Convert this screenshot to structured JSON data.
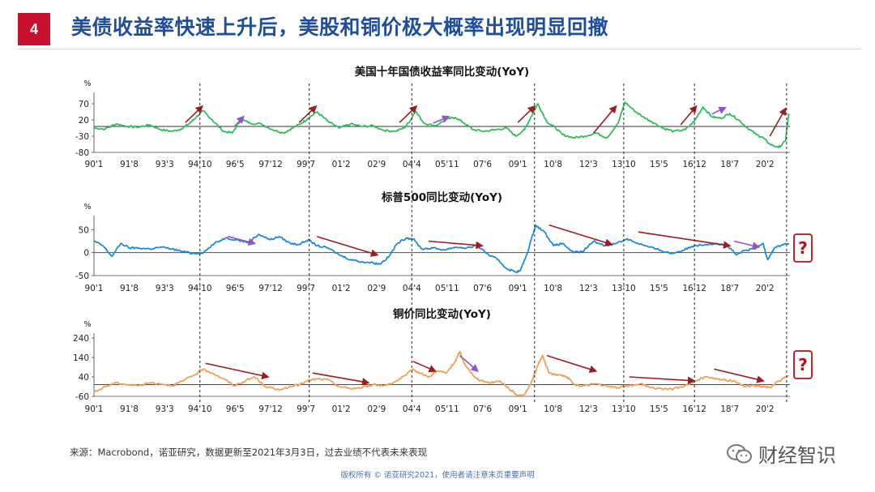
{
  "header": {
    "page_number": "4",
    "title": "美债收益率快速上升后，美股和铜价极大概率出现明显回撤"
  },
  "footer": {
    "source": "来源：Macrobond，诺亚研究，数据更新至2021年3月3日，过去业绩不代表未来表现",
    "copyright": "版权所有 © 诺亚研究2021，使用者请注意末页重要声明",
    "brand": "财经智识"
  },
  "colors": {
    "accent_red": "#c8102e",
    "title_blue": "#1f4e9c",
    "yield_green": "#2ebd5a",
    "sp500_blue": "#1f8ad6",
    "copper_orange": "#f0a055",
    "arrow_red": "#9e1c22",
    "arrow_purple": "#8e57c9"
  },
  "icons": [
    "question-mark-icon",
    "wechat-brand-icon"
  ],
  "chart_data": [
    {
      "type": "line",
      "title": "美国十年国债收益率同比变动(YoY)",
      "unit_label": "%",
      "ylim": [
        -80,
        90
      ],
      "yticks": [
        70,
        20,
        -30,
        -80
      ],
      "xlim": [
        1990.0,
        2021.2
      ],
      "xticks": [
        {
          "label": "90'1",
          "x": 1990.0
        },
        {
          "label": "91'8",
          "x": 1991.58
        },
        {
          "label": "93'3",
          "x": 1993.17
        },
        {
          "label": "94'10",
          "x": 1994.75
        },
        {
          "label": "96'5",
          "x": 1996.33
        },
        {
          "label": "97'12",
          "x": 1997.92
        },
        {
          "label": "99'7",
          "x": 1999.5
        },
        {
          "label": "01'2",
          "x": 2001.08
        },
        {
          "label": "02'9",
          "x": 2002.67
        },
        {
          "label": "04'4",
          "x": 2004.25
        },
        {
          "label": "05'11",
          "x": 2005.83
        },
        {
          "label": "07'6",
          "x": 2007.42
        },
        {
          "label": "09'1",
          "x": 2009.0
        },
        {
          "label": "10'8",
          "x": 2010.58
        },
        {
          "label": "12'3",
          "x": 2012.17
        },
        {
          "label": "13'10",
          "x": 2013.75
        },
        {
          "label": "15'5",
          "x": 2015.33
        },
        {
          "label": "16'12",
          "x": 2016.92
        },
        {
          "label": "18'7",
          "x": 2018.5
        },
        {
          "label": "20'2",
          "x": 2020.08
        }
      ],
      "series": [
        {
          "x": [
            1990.0,
            1990.5,
            1991.0,
            1991.5,
            1992.0,
            1992.5,
            1993.0,
            1993.5,
            1993.9,
            1994.3,
            1994.6,
            1994.9,
            1995.3,
            1995.8,
            1996.2,
            1996.6,
            1997.0,
            1997.5,
            1998.0,
            1998.5,
            1998.9,
            1999.3,
            1999.6,
            2000.0,
            2000.5,
            2001.0,
            2001.5,
            2002.0,
            2002.5,
            2003.0,
            2003.5,
            2003.9,
            2004.2,
            2004.4,
            2004.8,
            2005.3,
            2005.8,
            2006.2,
            2006.6,
            2007.0,
            2007.5,
            2008.0,
            2008.5,
            2008.9,
            2009.3,
            2009.6,
            2009.9,
            2010.3,
            2010.7,
            2011.0,
            2011.5,
            2012.0,
            2012.5,
            2013.0,
            2013.5,
            2013.8,
            2014.2,
            2014.6,
            2015.0,
            2015.5,
            2016.0,
            2016.5,
            2016.9,
            2017.3,
            2017.7,
            2018.1,
            2018.5,
            2018.9,
            2019.3,
            2019.7,
            2020.0,
            2020.3,
            2020.7,
            2021.0,
            2021.15
          ],
          "y": [
            -5,
            -8,
            8,
            0,
            -2,
            5,
            -10,
            -15,
            -8,
            10,
            30,
            48,
            20,
            -15,
            -20,
            22,
            10,
            8,
            -10,
            -20,
            -5,
            10,
            25,
            45,
            15,
            -5,
            8,
            0,
            2,
            -12,
            -15,
            -5,
            20,
            48,
            10,
            2,
            22,
            28,
            10,
            -10,
            -15,
            -10,
            -5,
            -30,
            -10,
            30,
            70,
            15,
            -5,
            -25,
            -35,
            -30,
            -20,
            -35,
            10,
            75,
            50,
            30,
            15,
            -5,
            -15,
            -10,
            15,
            60,
            30,
            25,
            40,
            20,
            -5,
            -25,
            -35,
            -55,
            -65,
            -45,
            40
          ]
        }
      ],
      "annotations": [
        {
          "type": "arrow",
          "color": "red",
          "from": [
            1994.1,
            12
          ],
          "to": [
            1994.85,
            62
          ]
        },
        {
          "type": "arrow",
          "color": "purple",
          "from": [
            1996.3,
            0
          ],
          "to": [
            1996.7,
            30
          ]
        },
        {
          "type": "arrow",
          "color": "red",
          "from": [
            1999.2,
            12
          ],
          "to": [
            1999.95,
            62
          ]
        },
        {
          "type": "arrow",
          "color": "red",
          "from": [
            2003.7,
            12
          ],
          "to": [
            2004.45,
            62
          ]
        },
        {
          "type": "arrow",
          "color": "purple",
          "from": [
            2005.2,
            10
          ],
          "to": [
            2005.9,
            30
          ]
        },
        {
          "type": "arrow",
          "color": "red",
          "from": [
            2009.0,
            12
          ],
          "to": [
            2009.75,
            62
          ]
        },
        {
          "type": "arrow",
          "color": "red",
          "from": [
            2012.4,
            -20
          ],
          "to": [
            2013.4,
            62
          ]
        },
        {
          "type": "arrow",
          "color": "red",
          "from": [
            2016.3,
            5
          ],
          "to": [
            2017.0,
            62
          ]
        },
        {
          "type": "arrow",
          "color": "purple",
          "from": [
            2017.7,
            38
          ],
          "to": [
            2018.3,
            58
          ]
        },
        {
          "type": "arrow",
          "color": "red",
          "from": [
            2020.3,
            -30
          ],
          "to": [
            2021.0,
            55
          ]
        }
      ]
    },
    {
      "type": "line",
      "title": "标普500同比变动(YoY)",
      "unit_label": "%",
      "ylim": [
        -50,
        70
      ],
      "yticks": [
        50,
        0,
        -50
      ],
      "xlim": [
        1990.0,
        2021.2
      ],
      "xticks": [
        {
          "label": "90'1",
          "x": 1990.0
        },
        {
          "label": "91'8",
          "x": 1991.58
        },
        {
          "label": "93'3",
          "x": 1993.17
        },
        {
          "label": "94'10",
          "x": 1994.75
        },
        {
          "label": "96'5",
          "x": 1996.33
        },
        {
          "label": "97'12",
          "x": 1997.92
        },
        {
          "label": "99'7",
          "x": 1999.5
        },
        {
          "label": "01'2",
          "x": 2001.08
        },
        {
          "label": "02'9",
          "x": 2002.67
        },
        {
          "label": "04'4",
          "x": 2004.25
        },
        {
          "label": "05'11",
          "x": 2005.83
        },
        {
          "label": "07'6",
          "x": 2007.42
        },
        {
          "label": "09'1",
          "x": 2009.0
        },
        {
          "label": "10'8",
          "x": 2010.58
        },
        {
          "label": "12'3",
          "x": 2012.17
        },
        {
          "label": "13'10",
          "x": 2013.75
        },
        {
          "label": "15'5",
          "x": 2015.33
        },
        {
          "label": "16'12",
          "x": 2016.92
        },
        {
          "label": "18'7",
          "x": 2018.5
        },
        {
          "label": "20'2",
          "x": 2020.08
        }
      ],
      "series": [
        {
          "x": [
            1990.0,
            1990.4,
            1990.8,
            1991.2,
            1991.6,
            1992.0,
            1992.5,
            1993.0,
            1993.5,
            1994.0,
            1994.5,
            1994.9,
            1995.4,
            1995.9,
            1996.4,
            1996.9,
            1997.4,
            1997.9,
            1998.3,
            1998.8,
            1999.2,
            1999.6,
            2000.0,
            2000.5,
            2001.0,
            2001.5,
            2002.0,
            2002.5,
            2002.8,
            2003.2,
            2003.6,
            2004.0,
            2004.3,
            2004.7,
            2005.2,
            2005.7,
            2006.2,
            2006.7,
            2007.2,
            2007.7,
            2008.1,
            2008.5,
            2008.9,
            2009.1,
            2009.4,
            2009.8,
            2010.2,
            2010.6,
            2011.0,
            2011.5,
            2011.9,
            2012.4,
            2012.9,
            2013.4,
            2013.9,
            2014.4,
            2014.9,
            2015.4,
            2015.9,
            2016.4,
            2016.9,
            2017.4,
            2017.9,
            2018.4,
            2018.8,
            2019.2,
            2019.6,
            2020.0,
            2020.2,
            2020.5,
            2020.9,
            2021.15
          ],
          "y": [
            25,
            15,
            -8,
            20,
            10,
            10,
            8,
            12,
            8,
            2,
            -2,
            0,
            20,
            32,
            28,
            22,
            40,
            28,
            35,
            20,
            18,
            28,
            15,
            10,
            -5,
            -15,
            -20,
            -22,
            -25,
            -10,
            20,
            32,
            30,
            8,
            10,
            6,
            12,
            10,
            15,
            -5,
            -15,
            -35,
            -42,
            -40,
            -5,
            60,
            45,
            15,
            20,
            0,
            2,
            25,
            15,
            20,
            30,
            20,
            12,
            5,
            -2,
            5,
            15,
            18,
            20,
            15,
            -5,
            5,
            8,
            20,
            -15,
            10,
            18,
            20
          ]
        }
      ],
      "annotations": [
        {
          "type": "arrow",
          "color": "purple",
          "from": [
            1996.0,
            35
          ],
          "to": [
            1997.2,
            20
          ]
        },
        {
          "type": "arrow",
          "color": "red",
          "from": [
            2000.0,
            35
          ],
          "to": [
            2002.7,
            -5
          ]
        },
        {
          "type": "arrow",
          "color": "red",
          "from": [
            2005.0,
            25
          ],
          "to": [
            2007.4,
            15
          ]
        },
        {
          "type": "arrow",
          "color": "red",
          "from": [
            2010.4,
            60
          ],
          "to": [
            2013.2,
            18
          ]
        },
        {
          "type": "arrow",
          "color": "red",
          "from": [
            2014.4,
            45
          ],
          "to": [
            2018.5,
            15
          ]
        },
        {
          "type": "arrow",
          "color": "purple",
          "from": [
            2018.7,
            25
          ],
          "to": [
            2019.8,
            12
          ]
        }
      ],
      "callout": "?"
    },
    {
      "type": "line",
      "title": "铜价同比变动(YoY)",
      "unit_label": "%",
      "ylim": [
        -60,
        240
      ],
      "yticks": [
        240,
        140,
        40,
        -60
      ],
      "xlim": [
        1990.0,
        2021.2
      ],
      "xticks": [
        {
          "label": "90'1",
          "x": 1990.0
        },
        {
          "label": "91'8",
          "x": 1991.58
        },
        {
          "label": "93'3",
          "x": 1993.17
        },
        {
          "label": "94'10",
          "x": 1994.75
        },
        {
          "label": "96'5",
          "x": 1996.33
        },
        {
          "label": "97'12",
          "x": 1997.92
        },
        {
          "label": "99'7",
          "x": 1999.5
        },
        {
          "label": "01'2",
          "x": 2001.08
        },
        {
          "label": "02'9",
          "x": 2002.67
        },
        {
          "label": "04'4",
          "x": 2004.25
        },
        {
          "label": "05'11",
          "x": 2005.83
        },
        {
          "label": "07'6",
          "x": 2007.42
        },
        {
          "label": "09'1",
          "x": 2009.0
        },
        {
          "label": "10'8",
          "x": 2010.58
        },
        {
          "label": "12'3",
          "x": 2012.17
        },
        {
          "label": "13'10",
          "x": 2013.75
        },
        {
          "label": "15'5",
          "x": 2015.33
        },
        {
          "label": "16'12",
          "x": 2016.92
        },
        {
          "label": "18'7",
          "x": 2018.5
        },
        {
          "label": "20'2",
          "x": 2020.08
        }
      ],
      "series": [
        {
          "x": [
            1990.0,
            1990.5,
            1991.0,
            1991.5,
            1992.0,
            1992.5,
            1993.0,
            1993.5,
            1994.0,
            1994.5,
            1994.9,
            1995.3,
            1995.8,
            1996.3,
            1996.8,
            1997.2,
            1997.7,
            1998.2,
            1998.7,
            1999.2,
            1999.6,
            2000.0,
            2000.5,
            2001.0,
            2001.5,
            2002.0,
            2002.5,
            2003.0,
            2003.5,
            2004.0,
            2004.3,
            2004.6,
            2005.0,
            2005.4,
            2005.8,
            2006.2,
            2006.4,
            2006.6,
            2006.9,
            2007.3,
            2007.8,
            2008.2,
            2008.6,
            2009.0,
            2009.3,
            2009.6,
            2009.9,
            2010.1,
            2010.4,
            2010.8,
            2011.2,
            2011.6,
            2012.0,
            2012.5,
            2013.0,
            2013.5,
            2014.0,
            2014.5,
            2015.0,
            2015.5,
            2016.0,
            2016.5,
            2017.0,
            2017.4,
            2017.8,
            2018.2,
            2018.7,
            2019.2,
            2019.7,
            2020.0,
            2020.3,
            2020.7,
            2021.15
          ],
          "y": [
            -40,
            -10,
            10,
            0,
            -5,
            10,
            5,
            -5,
            20,
            50,
            80,
            60,
            30,
            -5,
            20,
            40,
            -10,
            -25,
            -15,
            0,
            20,
            30,
            25,
            -10,
            -20,
            -15,
            0,
            -5,
            15,
            50,
            80,
            60,
            40,
            70,
            60,
            120,
            170,
            110,
            60,
            20,
            10,
            20,
            -20,
            -55,
            -50,
            10,
            100,
            150,
            60,
            50,
            40,
            -5,
            -5,
            5,
            -10,
            -15,
            -5,
            5,
            -15,
            -25,
            -20,
            -5,
            20,
            40,
            30,
            25,
            20,
            -10,
            -5,
            -10,
            -15,
            20,
            45
          ]
        }
      ],
      "annotations": [
        {
          "type": "arrow",
          "color": "red",
          "from": [
            1995.0,
            110
          ],
          "to": [
            1997.8,
            40
          ]
        },
        {
          "type": "arrow",
          "color": "red",
          "from": [
            1999.8,
            60
          ],
          "to": [
            2002.3,
            10
          ]
        },
        {
          "type": "arrow",
          "color": "red",
          "from": [
            2004.3,
            120
          ],
          "to": [
            2005.3,
            70
          ]
        },
        {
          "type": "arrow",
          "color": "purple",
          "from": [
            2006.4,
            150
          ],
          "to": [
            2007.2,
            70
          ]
        },
        {
          "type": "arrow",
          "color": "red",
          "from": [
            2010.3,
            150
          ],
          "to": [
            2012.5,
            70
          ]
        },
        {
          "type": "arrow",
          "color": "red",
          "from": [
            2014.0,
            40
          ],
          "to": [
            2016.9,
            20
          ]
        },
        {
          "type": "arrow",
          "color": "red",
          "from": [
            2017.8,
            80
          ],
          "to": [
            2020.0,
            20
          ]
        }
      ],
      "callout": "?"
    }
  ],
  "cycle_markers_x": [
    1994.75,
    1999.65,
    2004.25,
    2009.75,
    2013.75,
    2016.92,
    2021.05
  ]
}
